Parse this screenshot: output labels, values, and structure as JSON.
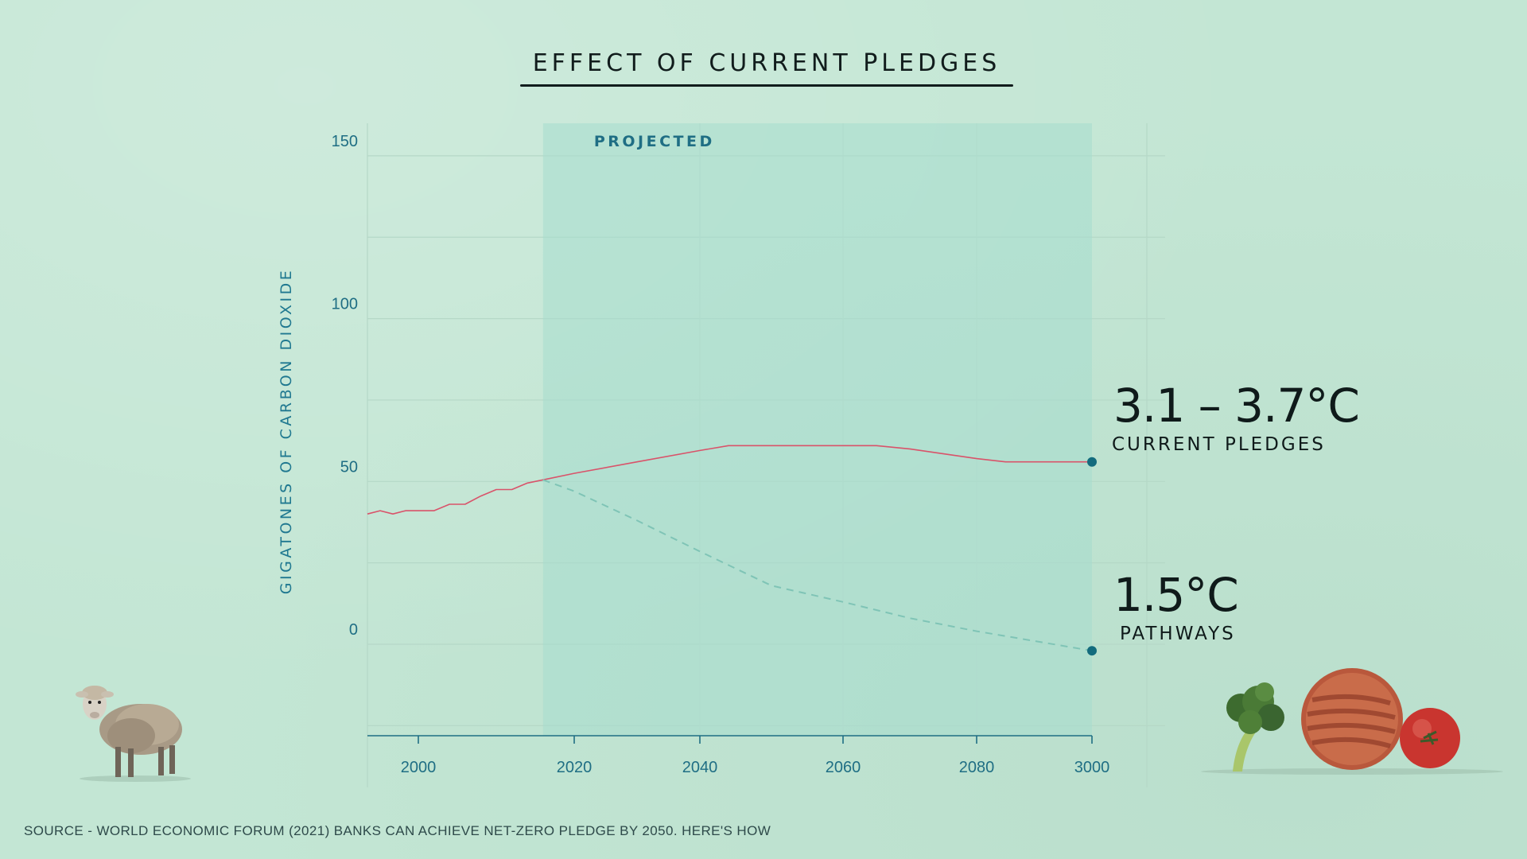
{
  "chart_data": {
    "type": "line",
    "title": "EFFECT OF CURRENT PLEDGES",
    "ylabel": "GIGATONES OF CARBON DIOXIDE",
    "xlabel": "",
    "ylim": [
      -28,
      160
    ],
    "y_ticks": [
      0,
      50,
      100,
      150
    ],
    "x_tick_labels": [
      "2000",
      "2020",
      "2040",
      "2060",
      "2080",
      "3000"
    ],
    "projected_label": "PROJECTED",
    "series": [
      {
        "name": "CURRENT PLEDGES",
        "color": "#d9536a",
        "style": "solid",
        "x": [
          "1992",
          "1994",
          "1996",
          "1998",
          "2000",
          "2002",
          "2004",
          "2006",
          "2008",
          "2010",
          "2012",
          "2014",
          "2016",
          "2020",
          "2030",
          "2040",
          "2044",
          "2050",
          "2060",
          "2065",
          "2070",
          "2080",
          "2085",
          "2090",
          "2100"
        ],
        "values": [
          40,
          41,
          40,
          41,
          41,
          41,
          43,
          43,
          45.5,
          47.5,
          47.5,
          49.5,
          50.5,
          52.5,
          56,
          59.5,
          61,
          61,
          61,
          61,
          60,
          57,
          56,
          56,
          56
        ]
      },
      {
        "name": "1.5°C PATHWAYS",
        "color": "#7fc4b6",
        "style": "dashed",
        "x": [
          "2016",
          "2020",
          "2030",
          "2040",
          "2050",
          "2060",
          "2070",
          "2080",
          "2090",
          "2100"
        ],
        "values": [
          50.5,
          47,
          38,
          28.5,
          18,
          13,
          8,
          4,
          1,
          -2
        ]
      }
    ],
    "annotations": {
      "pledges_value": "3.1 – 3.7°C",
      "pledges_label": "CURRENT PLEDGES",
      "pathways_value": "1.5°C",
      "pathways_label": "PATHWAYS"
    },
    "endpoint_color": "#136b7d",
    "grid": true,
    "legend": "none"
  },
  "footer": {
    "source": "SOURCE - WORLD ECONOMIC FORUM (2021) BANKS CAN ACHIEVE NET-ZERO PLEDGE BY 2050. HERE'S HOW"
  },
  "illustrations": {
    "left": "sheep-illustration",
    "right": "food-illustration"
  }
}
